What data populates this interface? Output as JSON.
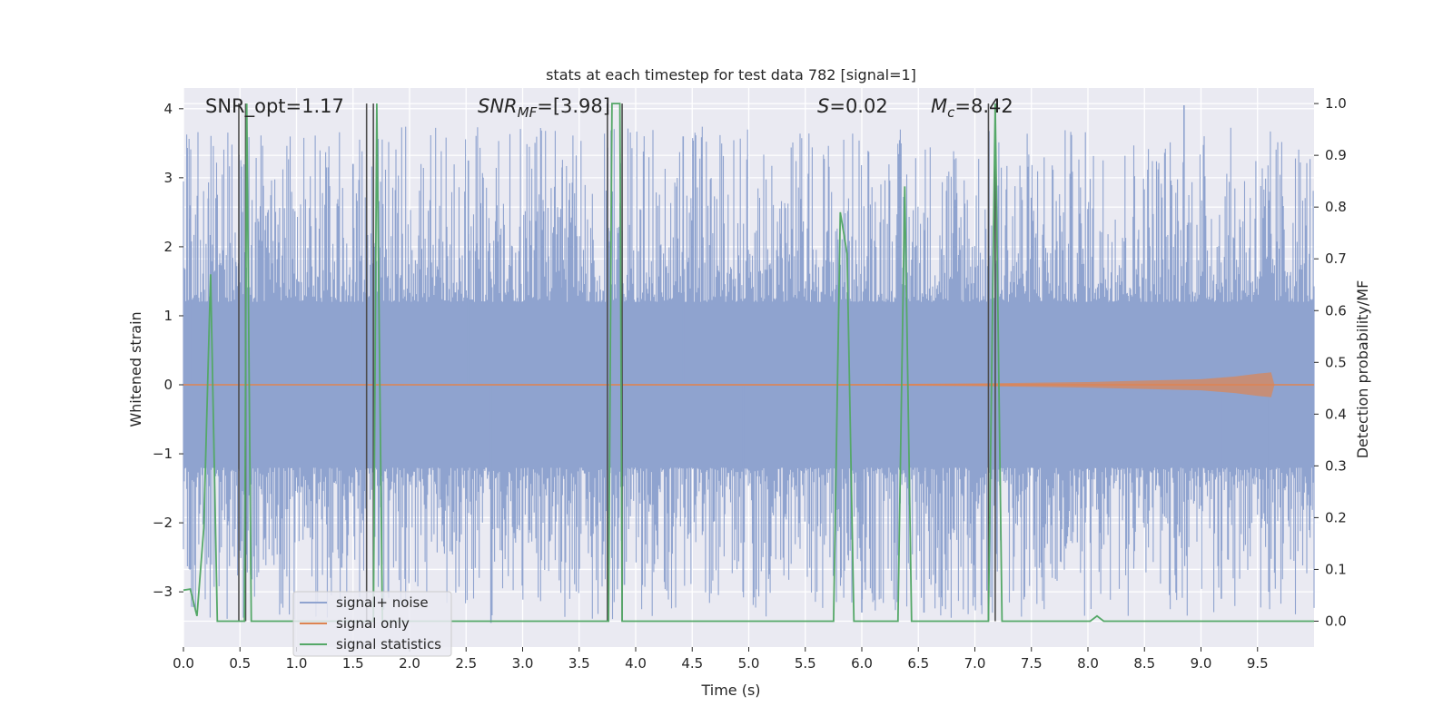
{
  "chart_data": {
    "type": "line",
    "title": "stats at each timestep for test data 782 [signal=1]",
    "xlabel": "Time (s)",
    "ylabel_left": "Whitened strain",
    "ylabel_right": "Detection probability/MF",
    "xlim": [
      0.0,
      10.0
    ],
    "ylim_left": [
      -3.8,
      4.3
    ],
    "ylim_right": [
      -0.05,
      1.03
    ],
    "x_ticks": [
      "0.0",
      "0.5",
      "1.0",
      "1.5",
      "2.0",
      "2.5",
      "3.0",
      "3.5",
      "4.0",
      "4.5",
      "5.0",
      "5.5",
      "6.0",
      "6.5",
      "7.0",
      "7.5",
      "8.0",
      "8.5",
      "9.0",
      "9.5"
    ],
    "x_tick_values": [
      0.0,
      0.5,
      1.0,
      1.5,
      2.0,
      2.5,
      3.0,
      3.5,
      4.0,
      4.5,
      5.0,
      5.5,
      6.0,
      6.5,
      7.0,
      7.5,
      8.0,
      8.5,
      9.0,
      9.5
    ],
    "y_left_ticks": [
      "4",
      "3",
      "2",
      "1",
      "0",
      "−1",
      "−2",
      "−3"
    ],
    "y_left_tick_values": [
      4,
      3,
      2,
      1,
      0,
      -1,
      -2,
      -3
    ],
    "y_right_ticks": [
      "1.0",
      "0.9",
      "0.8",
      "0.7",
      "0.6",
      "0.5",
      "0.4",
      "0.3",
      "0.2",
      "0.1",
      "0.0"
    ],
    "y_right_tick_values": [
      1.0,
      0.9,
      0.8,
      0.7,
      0.6,
      0.5,
      0.4,
      0.3,
      0.2,
      0.1,
      0.0
    ],
    "grid": true,
    "legend_placement": "lower-left",
    "annotations": {
      "snr_opt": "SNR_opt=1.17",
      "snr_mf_sym": "SNR",
      "snr_mf_sub": "MF",
      "snr_mf_val": "=[3.98]",
      "s_sym": "S",
      "s_val": "=0.02",
      "mc_sym": "M",
      "mc_sub": "c",
      "mc_val": "=8.42"
    },
    "series": [
      {
        "name": "signal+ noise",
        "axis": "left",
        "color": "#8fa3cf",
        "description_kind": "dense noise band",
        "envelope": {
          "core_low": -1.2,
          "core_high": 1.2,
          "spike_low": -3.4,
          "spike_high": 3.75
        },
        "highlighted_peaks": [
          {
            "x": 0.06,
            "y": 2.6
          },
          {
            "x": 0.22,
            "y": 2.7
          },
          {
            "x": 1.5,
            "y": 3.2
          },
          {
            "x": 2.52,
            "y": 3.25
          },
          {
            "x": 3.35,
            "y": 3.15
          },
          {
            "x": 3.9,
            "y": -2.9
          },
          {
            "x": 4.42,
            "y": 3.6
          },
          {
            "x": 4.95,
            "y": -3.0
          },
          {
            "x": 6.0,
            "y": -3.3
          },
          {
            "x": 6.55,
            "y": -3.3
          },
          {
            "x": 8.85,
            "y": 4.05
          },
          {
            "x": 9.18,
            "y": -3.1
          },
          {
            "x": 9.6,
            "y": -3.0
          },
          {
            "x": 2.72,
            "y": -3.45
          },
          {
            "x": 1.4,
            "y": -2.65
          }
        ]
      },
      {
        "name": "signal only",
        "axis": "left",
        "color": "#dd8452",
        "x": [
          0.0,
          6.0,
          7.0,
          7.5,
          8.0,
          8.5,
          9.0,
          9.3,
          9.5,
          9.62,
          9.65,
          10.0
        ],
        "amplitude": [
          0.005,
          0.01,
          0.02,
          0.03,
          0.04,
          0.06,
          0.08,
          0.12,
          0.16,
          0.18,
          0.0,
          0.0
        ]
      },
      {
        "name": "signal statistics",
        "axis": "right",
        "color": "#55a868",
        "x": [
          0.0,
          0.06,
          0.12,
          0.18,
          0.24,
          0.3,
          0.35,
          0.5,
          0.5,
          0.54,
          0.56,
          0.6,
          0.66,
          1.62,
          1.68,
          1.71,
          1.76,
          3.76,
          3.79,
          3.86,
          3.88,
          3.92,
          3.98,
          5.75,
          5.81,
          5.87,
          5.93,
          6.32,
          6.38,
          6.44,
          6.5,
          7.12,
          7.18,
          7.24,
          7.96,
          8.02,
          8.08,
          8.14,
          10.0
        ],
        "y": [
          0.06,
          0.062,
          0.01,
          0.18,
          0.67,
          0.0,
          0.0,
          0.0,
          0.0,
          0.0,
          1.0,
          0.0,
          0.0,
          0.0,
          0.0,
          1.0,
          0.0,
          0.0,
          1.0,
          1.0,
          0.0,
          0.0,
          0.0,
          0.0,
          0.79,
          0.71,
          0.0,
          0.0,
          0.84,
          0.0,
          0.0,
          0.0,
          1.0,
          0.0,
          0.0,
          0.0,
          0.01,
          0.0,
          0.0
        ]
      }
    ],
    "vertical_markers": {
      "color": "#4d4d4d",
      "x": [
        0.49,
        0.55,
        1.62,
        1.68,
        3.75,
        3.88,
        7.12,
        7.18
      ],
      "y_top": 1.0,
      "y_bottom": 0.0
    }
  }
}
